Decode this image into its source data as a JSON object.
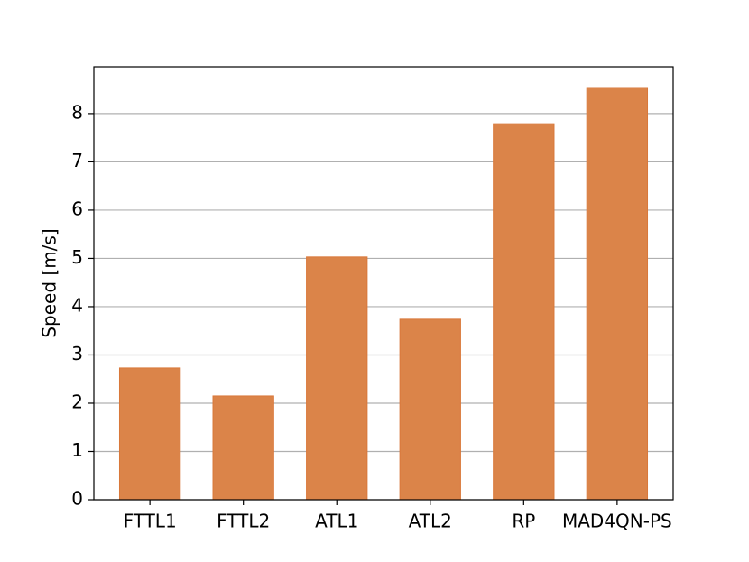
{
  "chart_data": {
    "type": "bar",
    "y_label": "Speed [m/s]",
    "categories": [
      "FTTL1",
      "FTTL2",
      "ATL1",
      "ATL2",
      "RP",
      "MAD4QN-PS"
    ],
    "values": [
      2.73,
      2.15,
      5.03,
      3.74,
      7.79,
      8.54
    ],
    "color": "#db8449",
    "ylim": [
      0,
      8.97
    ],
    "yticks": [
      0,
      1,
      2,
      3,
      4,
      5,
      6,
      7,
      8
    ],
    "grid": true
  }
}
